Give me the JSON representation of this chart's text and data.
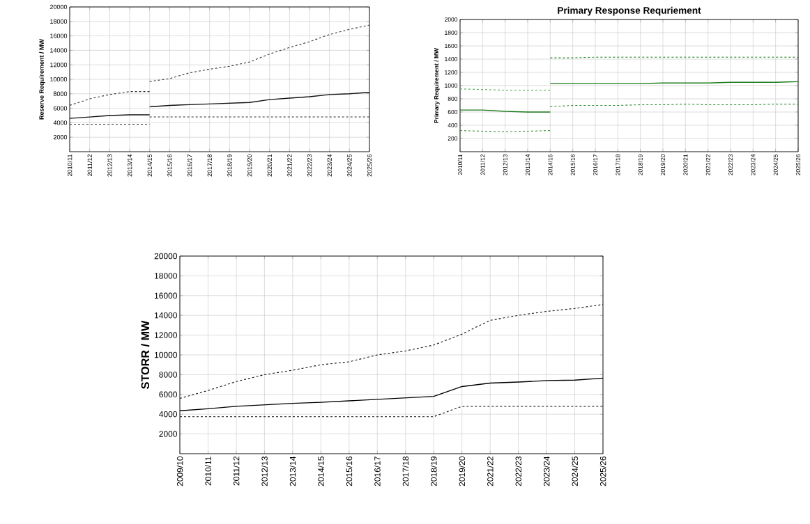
{
  "chart_data": [
    {
      "type": "line",
      "ylabel": "Reserve Requirement / MW",
      "categories": [
        "2010/11",
        "2011/12",
        "2012/13",
        "2013/14",
        "2014/15",
        "2015/16",
        "2016/17",
        "2017/18",
        "2018/19",
        "2019/20",
        "2020/21",
        "2021/22",
        "2022/23",
        "2023/24",
        "2024/25",
        "2025/26"
      ],
      "ylim": [
        0,
        20000
      ],
      "yticks": [
        2000,
        4000,
        6000,
        8000,
        10000,
        12000,
        14000,
        16000,
        18000,
        20000
      ],
      "grid": true,
      "series": [
        {
          "color": "#333333",
          "line_style": "dashed",
          "values": [
            6400,
            7300,
            7900,
            8300,
            8300,
            null,
            null,
            null,
            null,
            null,
            null,
            null,
            null,
            null,
            null,
            null
          ]
        },
        {
          "color": "#333333",
          "line_style": "dashed",
          "values": [
            null,
            null,
            null,
            null,
            9700,
            10100,
            10900,
            11400,
            11800,
            12400,
            13500,
            14400,
            15200,
            16200,
            16900,
            17500
          ]
        },
        {
          "color": "#111111",
          "line_style": "solid",
          "values": [
            4600,
            4800,
            5000,
            5100,
            5100,
            null,
            null,
            null,
            null,
            null,
            null,
            null,
            null,
            null,
            null,
            null
          ]
        },
        {
          "color": "#111111",
          "line_style": "solid",
          "values": [
            null,
            null,
            null,
            null,
            6200,
            6400,
            6500,
            6600,
            6700,
            6800,
            7200,
            7400,
            7600,
            7900,
            8000,
            8200
          ]
        },
        {
          "color": "#333333",
          "line_style": "dashed",
          "values": [
            3800,
            3800,
            3800,
            3800,
            3800,
            null,
            null,
            null,
            null,
            null,
            null,
            null,
            null,
            null,
            null,
            null
          ]
        },
        {
          "color": "#333333",
          "line_style": "dashed",
          "values": [
            null,
            null,
            null,
            null,
            4800,
            4800,
            4800,
            4800,
            4800,
            4800,
            4800,
            4800,
            4800,
            4800,
            4800,
            4800
          ]
        }
      ]
    },
    {
      "type": "line",
      "title": "Primary Response Requriement",
      "ylabel": "Primary Requirement / MW",
      "categories": [
        "2010/11",
        "2011/12",
        "2012/13",
        "2013/14",
        "2014/15",
        "2015/16",
        "2016/17",
        "2017/18",
        "2018/19",
        "2019/20",
        "2020/21",
        "2021/22",
        "2022/23",
        "2023/24",
        "2024/25",
        "2025/26"
      ],
      "ylim": [
        0,
        2000
      ],
      "yticks": [
        200,
        400,
        600,
        800,
        1000,
        1200,
        1400,
        1600,
        1800,
        2000
      ],
      "grid": true,
      "series": [
        {
          "color": "#4caf50",
          "line_style": "dashed",
          "values": [
            950,
            940,
            930,
            930,
            930,
            null,
            null,
            null,
            null,
            null,
            null,
            null,
            null,
            null,
            null,
            null
          ]
        },
        {
          "color": "#2e8b2e",
          "line_style": "dashed",
          "values": [
            null,
            null,
            null,
            null,
            1420,
            1420,
            1430,
            1430,
            1430,
            1430,
            1430,
            1430,
            1430,
            1430,
            1430,
            1430
          ]
        },
        {
          "color": "#1a7a1a",
          "line_style": "solid",
          "values": [
            630,
            630,
            610,
            600,
            600,
            null,
            null,
            null,
            null,
            null,
            null,
            null,
            null,
            null,
            null,
            null
          ]
        },
        {
          "color": "#1a7a1a",
          "line_style": "solid",
          "values": [
            null,
            null,
            null,
            null,
            1030,
            1030,
            1030,
            1030,
            1030,
            1040,
            1040,
            1040,
            1050,
            1050,
            1050,
            1060
          ]
        },
        {
          "color": "#2e8b2e",
          "line_style": "dashed",
          "values": [
            320,
            310,
            300,
            310,
            320,
            null,
            null,
            null,
            null,
            null,
            null,
            null,
            null,
            null,
            null,
            null
          ]
        },
        {
          "color": "#2e8b2e",
          "line_style": "dashed",
          "values": [
            null,
            null,
            null,
            null,
            680,
            700,
            700,
            700,
            710,
            710,
            720,
            710,
            710,
            710,
            720,
            720
          ]
        }
      ]
    },
    {
      "type": "line",
      "ylabel": "STORR / MW",
      "categories": [
        "2009/10",
        "2010/11",
        "2011/12",
        "2012/13",
        "2013/14",
        "2014/15",
        "2015/16",
        "2016/17",
        "2017/18",
        "2018/19",
        "2019/20",
        "2021/22",
        "2022/23",
        "2023/24",
        "2024/25",
        "2025/26"
      ],
      "ylim": [
        0,
        20000
      ],
      "yticks": [
        2000,
        4000,
        6000,
        8000,
        10000,
        12000,
        14000,
        16000,
        18000,
        20000
      ],
      "grid": true,
      "series": [
        {
          "color": "#111111",
          "line_style": "dashed",
          "values": [
            5600,
            6400,
            7300,
            8000,
            8450,
            9000,
            9300,
            10000,
            10400,
            11000,
            12100,
            13500,
            14000,
            14400,
            14700,
            15100
          ]
        },
        {
          "color": "#000000",
          "line_style": "solid",
          "values": [
            4350,
            4550,
            4800,
            4950,
            5100,
            5200,
            5350,
            5500,
            5650,
            5800,
            6800,
            7150,
            7250,
            7400,
            7450,
            7650
          ]
        },
        {
          "color": "#111111",
          "line_style": "dashed",
          "values": [
            3750,
            3750,
            3750,
            3750,
            3750,
            3750,
            3750,
            3750,
            3750,
            3750,
            4800,
            4800,
            4800,
            4800,
            4800,
            4800
          ]
        }
      ]
    }
  ]
}
